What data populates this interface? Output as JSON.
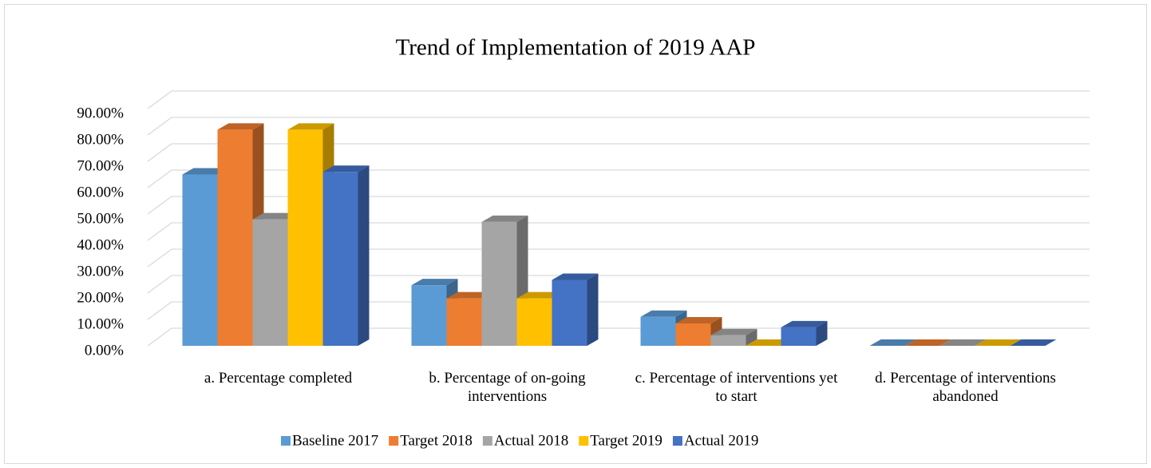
{
  "chart_data": {
    "type": "bar3d",
    "title": "Trend of Implementation of 2019 AAP",
    "categories": [
      "a. Percentage completed",
      "b. Percentage of on-going interventions",
      "c. Percentage of interventions yet to start",
      "d. Percentage of interventions abandoned"
    ],
    "series": [
      {
        "name": "Baseline 2017",
        "color": "#5b9bd5",
        "values": [
          65,
          23,
          11,
          0
        ]
      },
      {
        "name": "Target 2018",
        "color": "#ed7d31",
        "values": [
          82,
          18,
          8.5,
          0
        ]
      },
      {
        "name": "Actual 2018",
        "color": "#a5a5a5",
        "values": [
          48,
          47,
          4,
          0
        ]
      },
      {
        "name": "Target 2019",
        "color": "#ffc000",
        "values": [
          82,
          18,
          0,
          0
        ]
      },
      {
        "name": "Actual 2019",
        "color": "#4472c4",
        "values": [
          66,
          25,
          7,
          0
        ]
      }
    ],
    "ylim": [
      0,
      90
    ],
    "yticks": [
      {
        "value": 0,
        "label": "0.00%"
      },
      {
        "value": 10,
        "label": "10.00%"
      },
      {
        "value": 20,
        "label": "20.00%"
      },
      {
        "value": 30,
        "label": "30.00%"
      },
      {
        "value": 40,
        "label": "40.00%"
      },
      {
        "value": 50,
        "label": "50.00%"
      },
      {
        "value": 60,
        "label": "60.00%"
      },
      {
        "value": 70,
        "label": "70.00%"
      },
      {
        "value": 80,
        "label": "80.00%"
      },
      {
        "value": 90,
        "label": "90.00%"
      }
    ],
    "grid": true,
    "legend": "bottom"
  }
}
